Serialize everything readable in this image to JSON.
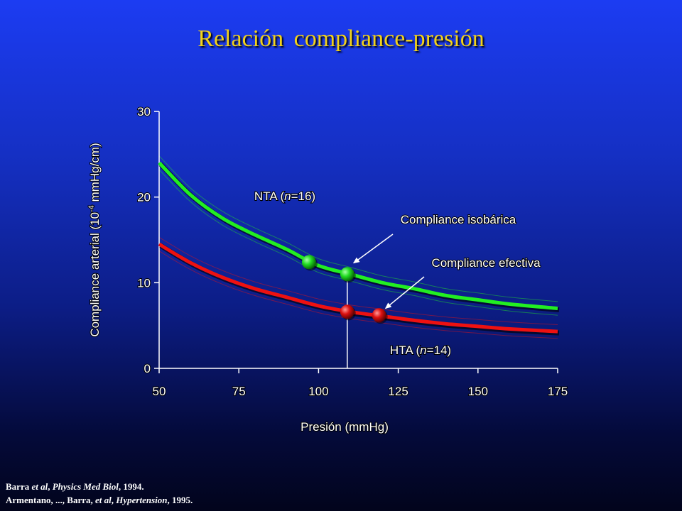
{
  "title": "Relación  compliance-presión",
  "references": [
    {
      "parts": [
        {
          "t": "Barra ",
          "i": false
        },
        {
          "t": "et al",
          "i": true
        },
        {
          "t": ", ",
          "i": false
        },
        {
          "t": "Physics Med Biol",
          "i": true
        },
        {
          "t": ", 1994.",
          "i": false
        }
      ]
    },
    {
      "parts": [
        {
          "t": "Armentano, ..., Barra, ",
          "i": false
        },
        {
          "t": "et al",
          "i": true
        },
        {
          "t": ", ",
          "i": false
        },
        {
          "t": "Hypertension",
          "i": true
        },
        {
          "t": ",  1995.",
          "i": false
        }
      ]
    }
  ],
  "colors": {
    "nta": "#22ee22",
    "hta": "#ee1111",
    "text": "#ffffff",
    "title": "#f2d21a"
  },
  "chart_data": {
    "type": "line",
    "title": "",
    "xlabel": "Presión (mmHg)",
    "ylabel_main": "Compliance arterial (10",
    "ylabel_sup": "-4",
    "ylabel_tail": " mmHg/cm)",
    "xlim": [
      50,
      175
    ],
    "ylim": [
      0,
      30
    ],
    "xticks": [
      50,
      75,
      100,
      125,
      150,
      175
    ],
    "yticks": [
      0,
      10,
      20,
      30
    ],
    "grid": false,
    "series": [
      {
        "key": "nta",
        "label_pre": "NTA (",
        "label_italic": "n",
        "label_post": "=16)",
        "color": "#22ee22",
        "x": [
          50,
          60,
          70,
          80,
          90,
          100,
          110,
          120,
          130,
          140,
          150,
          160,
          175
        ],
        "y": [
          24.0,
          20.2,
          17.5,
          15.6,
          13.9,
          12.0,
          11.0,
          10.0,
          9.3,
          8.5,
          8.0,
          7.5,
          7.0
        ],
        "markers": [
          {
            "x": 97,
            "y": 12.4
          },
          {
            "x": 109,
            "y": 11.0
          }
        ]
      },
      {
        "key": "hta",
        "label_pre": "HTA (",
        "label_italic": "n",
        "label_post": "=14)",
        "color": "#ee1111",
        "x": [
          50,
          60,
          70,
          80,
          90,
          100,
          110,
          120,
          130,
          140,
          150,
          160,
          175
        ],
        "y": [
          14.5,
          12.3,
          10.6,
          9.3,
          8.3,
          7.3,
          6.6,
          6.1,
          5.6,
          5.2,
          4.9,
          4.6,
          4.3
        ],
        "markers": [
          {
            "x": 109,
            "y": 6.6
          },
          {
            "x": 119,
            "y": 6.2
          }
        ]
      }
    ],
    "vertical_line_x": 109,
    "annotations": [
      {
        "text": "Compliance isobárica",
        "points_to": {
          "x": 111,
          "y": 12.3
        }
      },
      {
        "text": "Compliance efectiva",
        "points_to": {
          "x": 121,
          "y": 7.0
        }
      }
    ]
  }
}
